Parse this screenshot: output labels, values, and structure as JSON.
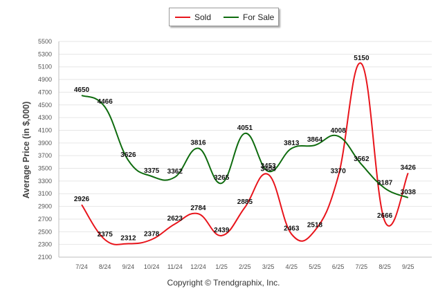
{
  "chart_data": {
    "type": "line",
    "title": "",
    "xlabel": "",
    "ylabel": "Average Price (in $,000)",
    "categories": [
      "7/24",
      "8/24",
      "9/24",
      "10/24",
      "11/24",
      "12/24",
      "1/25",
      "2/25",
      "3/25",
      "4/25",
      "5/25",
      "6/25",
      "7/25",
      "8/25",
      "9/25"
    ],
    "ylim": [
      2100,
      5500
    ],
    "yticks": [
      2100,
      2300,
      2500,
      2700,
      2900,
      3100,
      3300,
      3500,
      3700,
      3900,
      4100,
      4300,
      4500,
      4700,
      4900,
      5100,
      5300,
      5500
    ],
    "grid": true,
    "legend_position": "top",
    "series": [
      {
        "name": "Sold",
        "color": "#e8141b",
        "values": [
          2926,
          2375,
          2312,
          2378,
          2623,
          2784,
          2439,
          2885,
          3404,
          2463,
          2518,
          3370,
          5150,
          2666,
          3426
        ]
      },
      {
        "name": "For Sale",
        "color": "#0e6b0e",
        "values": [
          4650,
          4466,
          3626,
          3375,
          3362,
          3816,
          3265,
          4051,
          3453,
          3813,
          3864,
          4008,
          3562,
          3187,
          3038
        ]
      }
    ]
  },
  "copyright": "Copyright © Trendgraphix, Inc."
}
